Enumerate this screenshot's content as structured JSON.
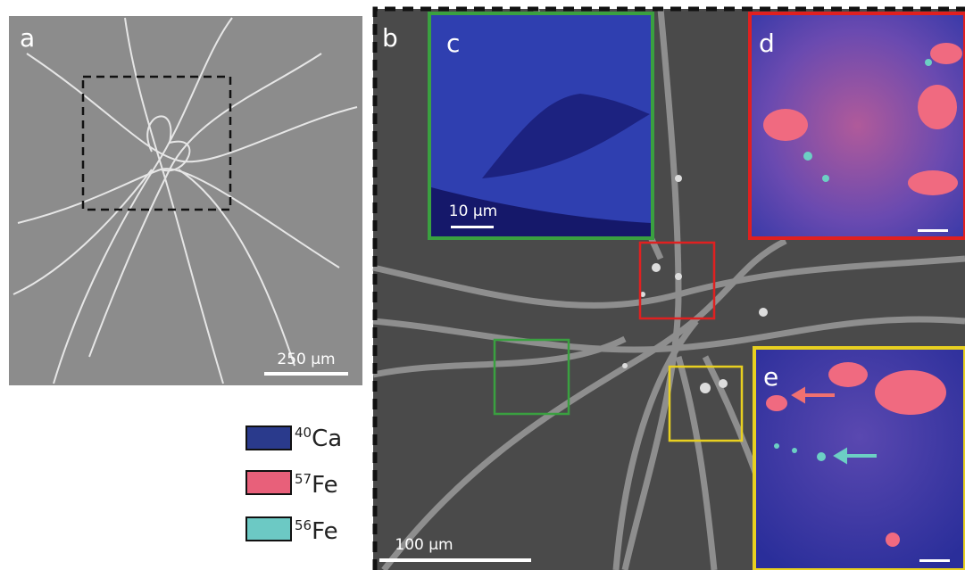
{
  "panels": [
    {
      "label": "a",
      "scale_bar": "250 µm"
    },
    {
      "label": "b",
      "scale_bar": "100 µm"
    },
    {
      "label": "c",
      "scale_bar": "10 µm"
    },
    {
      "label": "d"
    },
    {
      "label": "e"
    }
  ],
  "legend": [
    {
      "mass": "40",
      "element": "Ca"
    },
    {
      "mass": "57",
      "element": "Fe"
    },
    {
      "mass": "56",
      "element": "Fe"
    }
  ]
}
